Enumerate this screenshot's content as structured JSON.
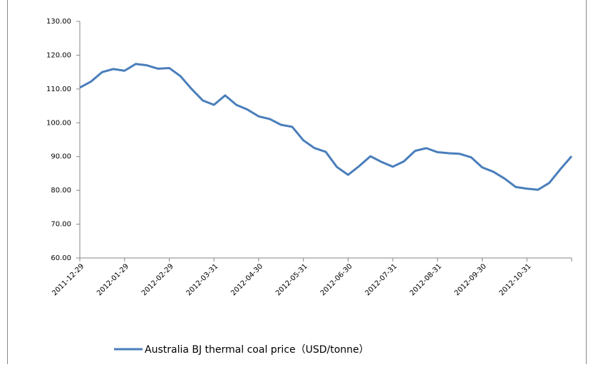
{
  "chart_data": {
    "type": "line",
    "categories": [
      "2011-12-29",
      null,
      null,
      null,
      "2012-01-29",
      null,
      null,
      null,
      "2012-02-29",
      null,
      null,
      null,
      "2012-03-31",
      null,
      null,
      null,
      "2012-04-30",
      null,
      null,
      null,
      "2012-05-31",
      null,
      null,
      null,
      "2012-06-30",
      null,
      null,
      null,
      "2012-07-31",
      null,
      null,
      null,
      "2012-08-31",
      null,
      null,
      null,
      "2012-09-30",
      null,
      null,
      null,
      "2012-10-31",
      null,
      null,
      null,
      null
    ],
    "series": [
      {
        "name": "Australia BJ thermal coal price（USD/tonne）",
        "color": "#4a7ebb",
        "values": [
          110.4,
          112.2,
          115.0,
          115.9,
          115.4,
          117.4,
          117.0,
          116.0,
          116.2,
          113.8,
          110.0,
          106.6,
          105.3,
          108.1,
          105.3,
          103.9,
          101.9,
          101.1,
          99.4,
          98.8,
          94.8,
          92.5,
          91.4,
          86.9,
          84.6,
          87.2,
          90.1,
          88.4,
          87.0,
          88.6,
          91.7,
          92.5,
          91.3,
          91.0,
          90.8,
          89.8,
          86.8,
          85.5,
          83.5,
          81.0,
          80.5,
          80.2,
          82.2,
          86.3,
          90.1
        ]
      }
    ],
    "ylim": [
      60,
      130
    ],
    "yticks": [
      {
        "value": 60,
        "label": "60.00"
      },
      {
        "value": 70,
        "label": "70.00"
      },
      {
        "value": 80,
        "label": "80.00"
      },
      {
        "value": 90,
        "label": "90.00"
      },
      {
        "value": 100,
        "label": "100.00"
      },
      {
        "value": 110,
        "label": "110.00"
      },
      {
        "value": 120,
        "label": "120.00"
      },
      {
        "value": 130,
        "label": "130.00"
      }
    ],
    "grid": false,
    "legend": "bottom"
  }
}
